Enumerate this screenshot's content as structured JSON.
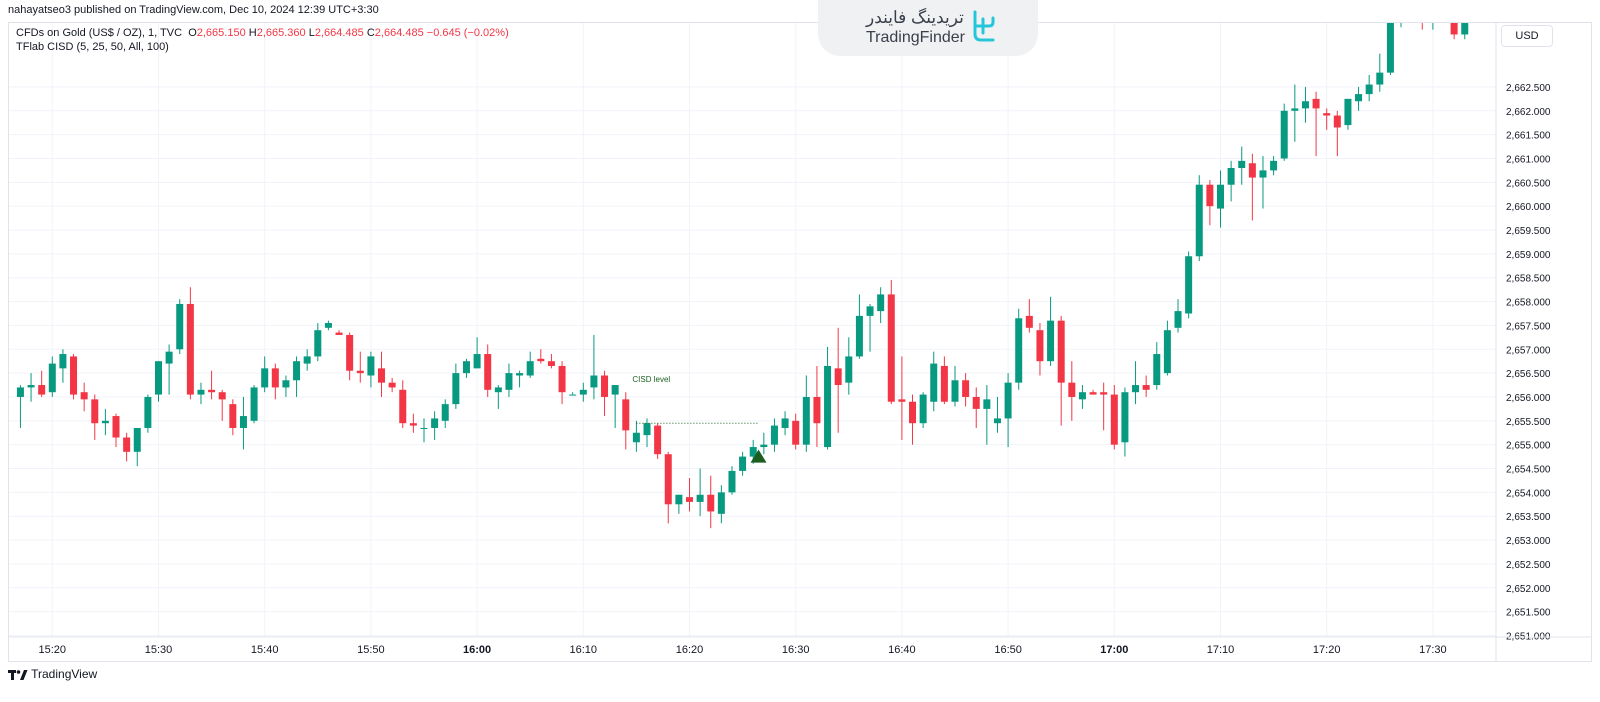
{
  "header": {
    "published": "nahayatseo3 published on TradingView.com, Dec 10, 2024 12:39 UTC+3:30",
    "symbol": "CFDs on Gold (US$ / OZ), 1, TVC",
    "ohlc": {
      "o_label": "O",
      "o_value": "2,665.150",
      "h_label": "H",
      "h_value": "2,665.360",
      "l_label": "L",
      "l_value": "2,664.485",
      "c_label": "C",
      "c_value": "2,664.485",
      "change": "−0.645 (−0.02%)"
    },
    "indicator": "TFlab CISD (5, 25, 50, All, 100)"
  },
  "logo": {
    "fa": "تریدینگ فایندر",
    "en": "TradingFinder"
  },
  "currency": "USD",
  "footer": {
    "brand": "TradingView"
  },
  "colors": {
    "up": "#089981",
    "down": "#f23645",
    "signal": "#1b5e20",
    "grid": "#f0f3fa"
  },
  "chart_data": {
    "type": "candlestick",
    "interval": "1 minute",
    "y_ticks": [
      "2,651.000",
      "2,651.500",
      "2,652.000",
      "2,652.500",
      "2,653.000",
      "2,653.500",
      "2,654.000",
      "2,654.500",
      "2,655.000",
      "2,655.500",
      "2,656.000",
      "2,656.500",
      "2,657.000",
      "2,657.500",
      "2,658.000",
      "2,658.500",
      "2,659.000",
      "2,659.500",
      "2,660.000",
      "2,660.500",
      "2,661.000",
      "2,661.500",
      "2,662.000",
      "2,662.500"
    ],
    "x_ticks": [
      {
        "label": "15:20",
        "index": 3,
        "bold": false
      },
      {
        "label": "15:30",
        "index": 13,
        "bold": false
      },
      {
        "label": "15:40",
        "index": 23,
        "bold": false
      },
      {
        "label": "15:50",
        "index": 33,
        "bold": false
      },
      {
        "label": "16:00",
        "index": 43,
        "bold": true
      },
      {
        "label": "16:10",
        "index": 53,
        "bold": false
      },
      {
        "label": "16:20",
        "index": 63,
        "bold": false
      },
      {
        "label": "16:30",
        "index": 73,
        "bold": false
      },
      {
        "label": "16:40",
        "index": 83,
        "bold": false
      },
      {
        "label": "16:50",
        "index": 93,
        "bold": false
      },
      {
        "label": "17:00",
        "index": 103,
        "bold": true
      },
      {
        "label": "17:10",
        "index": 113,
        "bold": false
      },
      {
        "label": "17:20",
        "index": 123,
        "bold": false
      },
      {
        "label": "17:30",
        "index": 133,
        "bold": false
      }
    ],
    "y_range": [
      2650.8,
      2663.4
    ],
    "first_index": -0.7,
    "cisd_level": {
      "label": "CISD level",
      "price": 2655.45,
      "from_index": 58,
      "to_index": 69.5
    },
    "signal": {
      "type": "bullish-triangle",
      "index": 69.5,
      "price": 2654.75
    },
    "candles": [
      [
        2656.0,
        2656.25,
        2655.35,
        2656.2
      ],
      [
        2656.2,
        2656.5,
        2655.9,
        2656.25
      ],
      [
        2656.25,
        2656.55,
        2656.0,
        2656.05
      ],
      [
        2656.1,
        2656.85,
        2656.0,
        2656.7
      ],
      [
        2656.6,
        2657.0,
        2656.3,
        2656.9
      ],
      [
        2656.85,
        2656.9,
        2655.95,
        2656.05
      ],
      [
        2656.1,
        2656.3,
        2655.7,
        2655.95
      ],
      [
        2655.95,
        2656.05,
        2655.1,
        2655.45
      ],
      [
        2655.45,
        2655.75,
        2655.2,
        2655.5
      ],
      [
        2655.6,
        2655.65,
        2654.95,
        2655.15
      ],
      [
        2655.15,
        2655.25,
        2654.65,
        2654.85
      ],
      [
        2654.85,
        2655.25,
        2654.55,
        2655.35
      ],
      [
        2655.35,
        2656.05,
        2655.25,
        2656.0
      ],
      [
        2656.05,
        2656.75,
        2655.9,
        2656.75
      ],
      [
        2656.7,
        2657.1,
        2656.05,
        2656.95
      ],
      [
        2657.0,
        2658.05,
        2656.9,
        2657.95
      ],
      [
        2657.95,
        2658.3,
        2655.95,
        2656.05
      ],
      [
        2656.05,
        2656.3,
        2655.85,
        2656.15
      ],
      [
        2656.15,
        2656.55,
        2655.95,
        2656.1
      ],
      [
        2656.1,
        2656.15,
        2655.5,
        2655.95
      ],
      [
        2655.85,
        2655.95,
        2655.2,
        2655.35
      ],
      [
        2655.35,
        2656.0,
        2654.9,
        2655.6
      ],
      [
        2655.5,
        2656.25,
        2655.45,
        2656.2
      ],
      [
        2656.2,
        2656.85,
        2656.1,
        2656.6
      ],
      [
        2656.6,
        2656.7,
        2655.95,
        2656.2
      ],
      [
        2656.2,
        2656.45,
        2656.0,
        2656.35
      ],
      [
        2656.35,
        2656.85,
        2656.0,
        2656.75
      ],
      [
        2656.7,
        2657.0,
        2656.55,
        2656.85
      ],
      [
        2656.85,
        2657.55,
        2656.75,
        2657.4
      ],
      [
        2657.45,
        2657.6,
        2657.4,
        2657.55
      ],
      [
        2657.35,
        2657.4,
        2657.3,
        2657.3
      ],
      [
        2657.3,
        2657.35,
        2656.35,
        2656.55
      ],
      [
        2656.55,
        2656.95,
        2656.3,
        2656.5
      ],
      [
        2656.45,
        2656.95,
        2656.2,
        2656.85
      ],
      [
        2656.6,
        2656.95,
        2656.0,
        2656.3
      ],
      [
        2656.3,
        2656.4,
        2656.1,
        2656.2
      ],
      [
        2656.15,
        2656.35,
        2655.35,
        2655.45
      ],
      [
        2655.45,
        2655.65,
        2655.25,
        2655.4
      ],
      [
        2655.35,
        2655.55,
        2655.05,
        2655.35
      ],
      [
        2655.35,
        2655.7,
        2655.1,
        2655.55
      ],
      [
        2655.5,
        2655.95,
        2655.35,
        2655.85
      ],
      [
        2655.85,
        2656.7,
        2655.75,
        2656.5
      ],
      [
        2656.5,
        2656.8,
        2656.4,
        2656.75
      ],
      [
        2656.6,
        2657.25,
        2656.6,
        2656.9
      ],
      [
        2656.9,
        2657.1,
        2656.0,
        2656.15
      ],
      [
        2656.1,
        2656.25,
        2655.75,
        2656.2
      ],
      [
        2656.15,
        2656.7,
        2656.0,
        2656.5
      ],
      [
        2656.45,
        2656.55,
        2656.2,
        2656.5
      ],
      [
        2656.45,
        2656.95,
        2656.4,
        2656.75
      ],
      [
        2656.8,
        2657.0,
        2656.7,
        2656.75
      ],
      [
        2656.75,
        2656.9,
        2656.6,
        2656.65
      ],
      [
        2656.65,
        2656.75,
        2655.85,
        2656.1
      ],
      [
        2656.05,
        2656.1,
        2656.05,
        2656.05
      ],
      [
        2656.05,
        2656.3,
        2655.9,
        2656.15
      ],
      [
        2656.2,
        2657.3,
        2655.95,
        2656.45
      ],
      [
        2656.45,
        2656.55,
        2655.6,
        2656.0
      ],
      [
        2656.05,
        2656.25,
        2655.35,
        2656.25
      ],
      [
        2655.95,
        2656.1,
        2654.9,
        2655.3
      ],
      [
        2655.05,
        2655.5,
        2654.85,
        2655.25
      ],
      [
        2655.2,
        2655.55,
        2654.95,
        2655.45
      ],
      [
        2655.4,
        2655.45,
        2654.7,
        2654.8
      ],
      [
        2654.8,
        2654.85,
        2653.35,
        2653.75
      ],
      [
        2653.75,
        2653.95,
        2653.55,
        2653.95
      ],
      [
        2653.9,
        2654.3,
        2653.6,
        2653.8
      ],
      [
        2653.8,
        2654.5,
        2653.5,
        2653.95
      ],
      [
        2653.95,
        2654.35,
        2653.25,
        2653.6
      ],
      [
        2653.55,
        2654.15,
        2653.35,
        2654.0
      ],
      [
        2654.0,
        2654.55,
        2653.95,
        2654.45
      ],
      [
        2654.45,
        2654.85,
        2654.35,
        2654.75
      ],
      [
        2654.75,
        2655.1,
        2654.6,
        2654.95
      ],
      [
        2654.95,
        2655.25,
        2654.8,
        2655.0
      ],
      [
        2655.0,
        2655.55,
        2654.85,
        2655.4
      ],
      [
        2655.35,
        2655.7,
        2655.2,
        2655.55
      ],
      [
        2655.5,
        2655.65,
        2654.9,
        2655.0
      ],
      [
        2655.0,
        2656.45,
        2654.85,
        2656.0
      ],
      [
        2656.0,
        2656.65,
        2654.95,
        2655.45
      ],
      [
        2654.95,
        2657.05,
        2654.9,
        2656.65
      ],
      [
        2656.6,
        2657.45,
        2655.25,
        2656.25
      ],
      [
        2656.3,
        2657.25,
        2656.05,
        2656.85
      ],
      [
        2656.85,
        2658.15,
        2656.8,
        2657.7
      ],
      [
        2657.7,
        2657.95,
        2656.95,
        2657.9
      ],
      [
        2657.8,
        2658.3,
        2657.55,
        2658.15
      ],
      [
        2658.15,
        2658.45,
        2655.85,
        2655.9
      ],
      [
        2655.95,
        2656.85,
        2655.1,
        2655.9
      ],
      [
        2655.9,
        2656.05,
        2655.0,
        2655.45
      ],
      [
        2655.45,
        2656.1,
        2655.35,
        2656.05
      ],
      [
        2655.9,
        2656.95,
        2655.7,
        2656.7
      ],
      [
        2656.65,
        2656.85,
        2655.85,
        2655.9
      ],
      [
        2655.9,
        2656.65,
        2655.8,
        2656.35
      ],
      [
        2656.35,
        2656.5,
        2655.8,
        2656.0
      ],
      [
        2656.0,
        2656.2,
        2655.35,
        2655.75
      ],
      [
        2655.75,
        2656.25,
        2655.0,
        2655.95
      ],
      [
        2655.45,
        2656.0,
        2655.25,
        2655.55
      ],
      [
        2655.55,
        2656.5,
        2654.95,
        2656.3
      ],
      [
        2656.3,
        2657.85,
        2656.15,
        2657.65
      ],
      [
        2657.7,
        2658.05,
        2657.35,
        2657.45
      ],
      [
        2657.4,
        2657.55,
        2656.45,
        2656.75
      ],
      [
        2656.75,
        2658.1,
        2656.65,
        2657.6
      ],
      [
        2657.6,
        2657.7,
        2655.4,
        2656.3
      ],
      [
        2656.3,
        2656.75,
        2655.5,
        2656.0
      ],
      [
        2655.95,
        2656.25,
        2655.75,
        2656.1
      ],
      [
        2656.1,
        2656.15,
        2656.05,
        2656.05
      ],
      [
        2656.1,
        2656.3,
        2655.3,
        2656.05
      ],
      [
        2656.05,
        2656.25,
        2654.9,
        2655.0
      ],
      [
        2655.05,
        2656.2,
        2654.75,
        2656.1
      ],
      [
        2656.1,
        2656.75,
        2655.85,
        2656.25
      ],
      [
        2656.25,
        2656.45,
        2656.0,
        2656.15
      ],
      [
        2656.25,
        2657.15,
        2656.15,
        2656.9
      ],
      [
        2656.5,
        2657.6,
        2656.45,
        2657.4
      ],
      [
        2657.45,
        2658.05,
        2657.35,
        2657.8
      ],
      [
        2657.75,
        2659.05,
        2657.65,
        2658.95
      ],
      [
        2658.95,
        2660.65,
        2658.85,
        2660.45
      ],
      [
        2660.45,
        2660.55,
        2659.6,
        2660.0
      ],
      [
        2659.95,
        2660.75,
        2659.55,
        2660.45
      ],
      [
        2660.45,
        2660.95,
        2660.1,
        2660.8
      ],
      [
        2660.8,
        2661.25,
        2660.45,
        2660.95
      ],
      [
        2660.9,
        2661.1,
        2659.7,
        2660.6
      ],
      [
        2660.6,
        2661.05,
        2659.95,
        2660.75
      ],
      [
        2660.75,
        2661.05,
        2660.65,
        2660.95
      ],
      [
        2661.0,
        2662.15,
        2660.95,
        2662.0
      ],
      [
        2662.0,
        2662.55,
        2661.35,
        2662.05
      ],
      [
        2662.05,
        2662.5,
        2661.75,
        2662.2
      ],
      [
        2662.25,
        2662.4,
        2661.05,
        2662.05
      ],
      [
        2661.95,
        2662.05,
        2661.6,
        2661.9
      ],
      [
        2661.9,
        2662.0,
        2661.05,
        2661.65
      ],
      [
        2661.7,
        2662.15,
        2661.6,
        2662.25
      ],
      [
        2662.2,
        2662.5,
        2662.0,
        2662.35
      ],
      [
        2662.35,
        2662.75,
        2662.2,
        2662.55
      ],
      [
        2662.55,
        2663.2,
        2662.4,
        2662.8
      ],
      [
        2662.8,
        2664.0,
        2662.75,
        2663.9
      ],
      [
        2663.9,
        2664.3,
        2663.75,
        2664.1
      ],
      [
        2664.0,
        2664.1,
        2663.85,
        2663.9
      ],
      [
        2663.9,
        2664.1,
        2663.7,
        2663.85
      ],
      [
        2663.85,
        2664.3,
        2663.7,
        2664.1
      ],
      [
        2664.1,
        2664.2,
        2663.95,
        2663.9
      ],
      [
        2663.9,
        2664.0,
        2663.5,
        2663.6
      ],
      [
        2663.6,
        2664.2,
        2663.5,
        2664.05
      ],
      [
        2664.05,
        2664.3,
        2663.9,
        2664.15
      ],
      [
        2664.15,
        2664.3,
        2663.9,
        2663.95
      ],
      [
        2663.95,
        2664.1,
        2663.8,
        2663.9
      ],
      [
        2663.9,
        2664.05,
        2663.85,
        2663.95
      ],
      [
        2663.95,
        2664.1,
        2663.6,
        2663.7
      ],
      [
        2663.7,
        2664.2,
        2663.65,
        2664.05
      ],
      [
        2664.05,
        2664.3,
        2663.75,
        2663.85
      ],
      [
        2663.85,
        2664.1,
        2663.8,
        2663.95
      ],
      [
        2663.95,
        2664.05,
        2663.15,
        2663.3
      ],
      [
        2663.3,
        2663.85,
        2662.45,
        2663.6
      ]
    ]
  }
}
